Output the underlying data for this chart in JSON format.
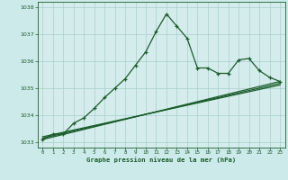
{
  "title": "Graphe pression niveau de la mer (hPa)",
  "background_color": "#cdeaea",
  "plot_bg_color": "#d4ecec",
  "grid_color": "#a8cece",
  "line_color": "#1a5c2a",
  "xlim": [
    -0.5,
    23.5
  ],
  "ylim": [
    1032.8,
    1038.2
  ],
  "xticks": [
    0,
    1,
    2,
    3,
    4,
    5,
    6,
    7,
    8,
    9,
    10,
    11,
    12,
    13,
    14,
    15,
    16,
    17,
    18,
    19,
    20,
    21,
    22,
    23
  ],
  "yticks": [
    1033,
    1034,
    1035,
    1036,
    1037,
    1038
  ],
  "series1": {
    "x": [
      0,
      1,
      2,
      3,
      4,
      5,
      6,
      7,
      8,
      9,
      10,
      11,
      12,
      13,
      14,
      15,
      16,
      17,
      18,
      19,
      20,
      21,
      22,
      23
    ],
    "y": [
      1033.1,
      1033.3,
      1033.3,
      1033.7,
      1033.9,
      1034.25,
      1034.65,
      1035.0,
      1035.35,
      1035.85,
      1036.35,
      1037.1,
      1037.75,
      1037.3,
      1036.85,
      1035.75,
      1035.75,
      1035.55,
      1035.55,
      1036.05,
      1036.1,
      1035.65,
      1035.4,
      1035.25
    ]
  },
  "series2": {
    "x": [
      0,
      23
    ],
    "y": [
      1033.1,
      1035.25
    ]
  },
  "series3": {
    "x": [
      0,
      23
    ],
    "y": [
      1033.15,
      1035.18
    ]
  },
  "series4": {
    "x": [
      0,
      23
    ],
    "y": [
      1033.2,
      1035.12
    ]
  }
}
